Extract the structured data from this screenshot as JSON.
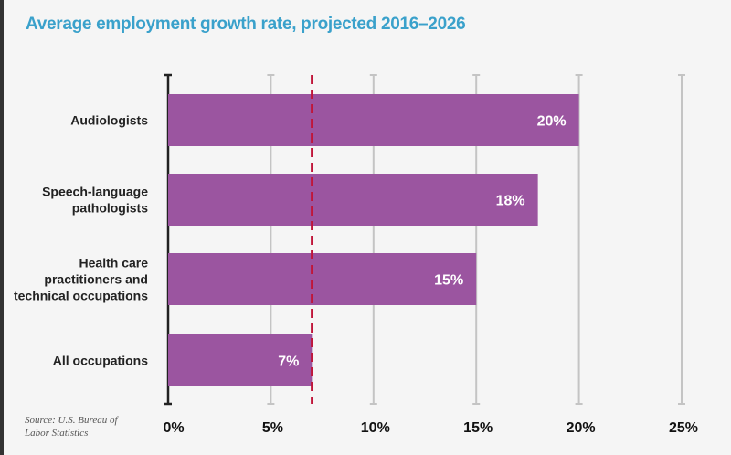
{
  "chart_data": {
    "type": "bar",
    "orientation": "horizontal",
    "title": "Average employment growth rate, projected 2016–2026",
    "categories": [
      [
        "Audiologists"
      ],
      [
        "Speech-language",
        "pathologists"
      ],
      [
        "Health care",
        "practitioners and",
        "technical occupations"
      ],
      [
        "All occupations"
      ]
    ],
    "values": [
      20,
      18,
      15,
      7
    ],
    "data_labels": [
      "20%",
      "18%",
      "15%",
      "7%"
    ],
    "xlim": [
      0,
      25
    ],
    "x_ticks": [
      0,
      5,
      10,
      15,
      20,
      25
    ],
    "x_tick_labels": [
      "0%",
      "5%",
      "10%",
      "15%",
      "20%",
      "25%"
    ],
    "reference_line": {
      "value": 7,
      "style": "dashed",
      "color": "#c0163a"
    },
    "grid": true,
    "bar_color": "#9b55a0",
    "title_color": "#3aa1cb",
    "source": [
      "Source: U.S. Bureau of",
      "Labor Statistics"
    ]
  }
}
